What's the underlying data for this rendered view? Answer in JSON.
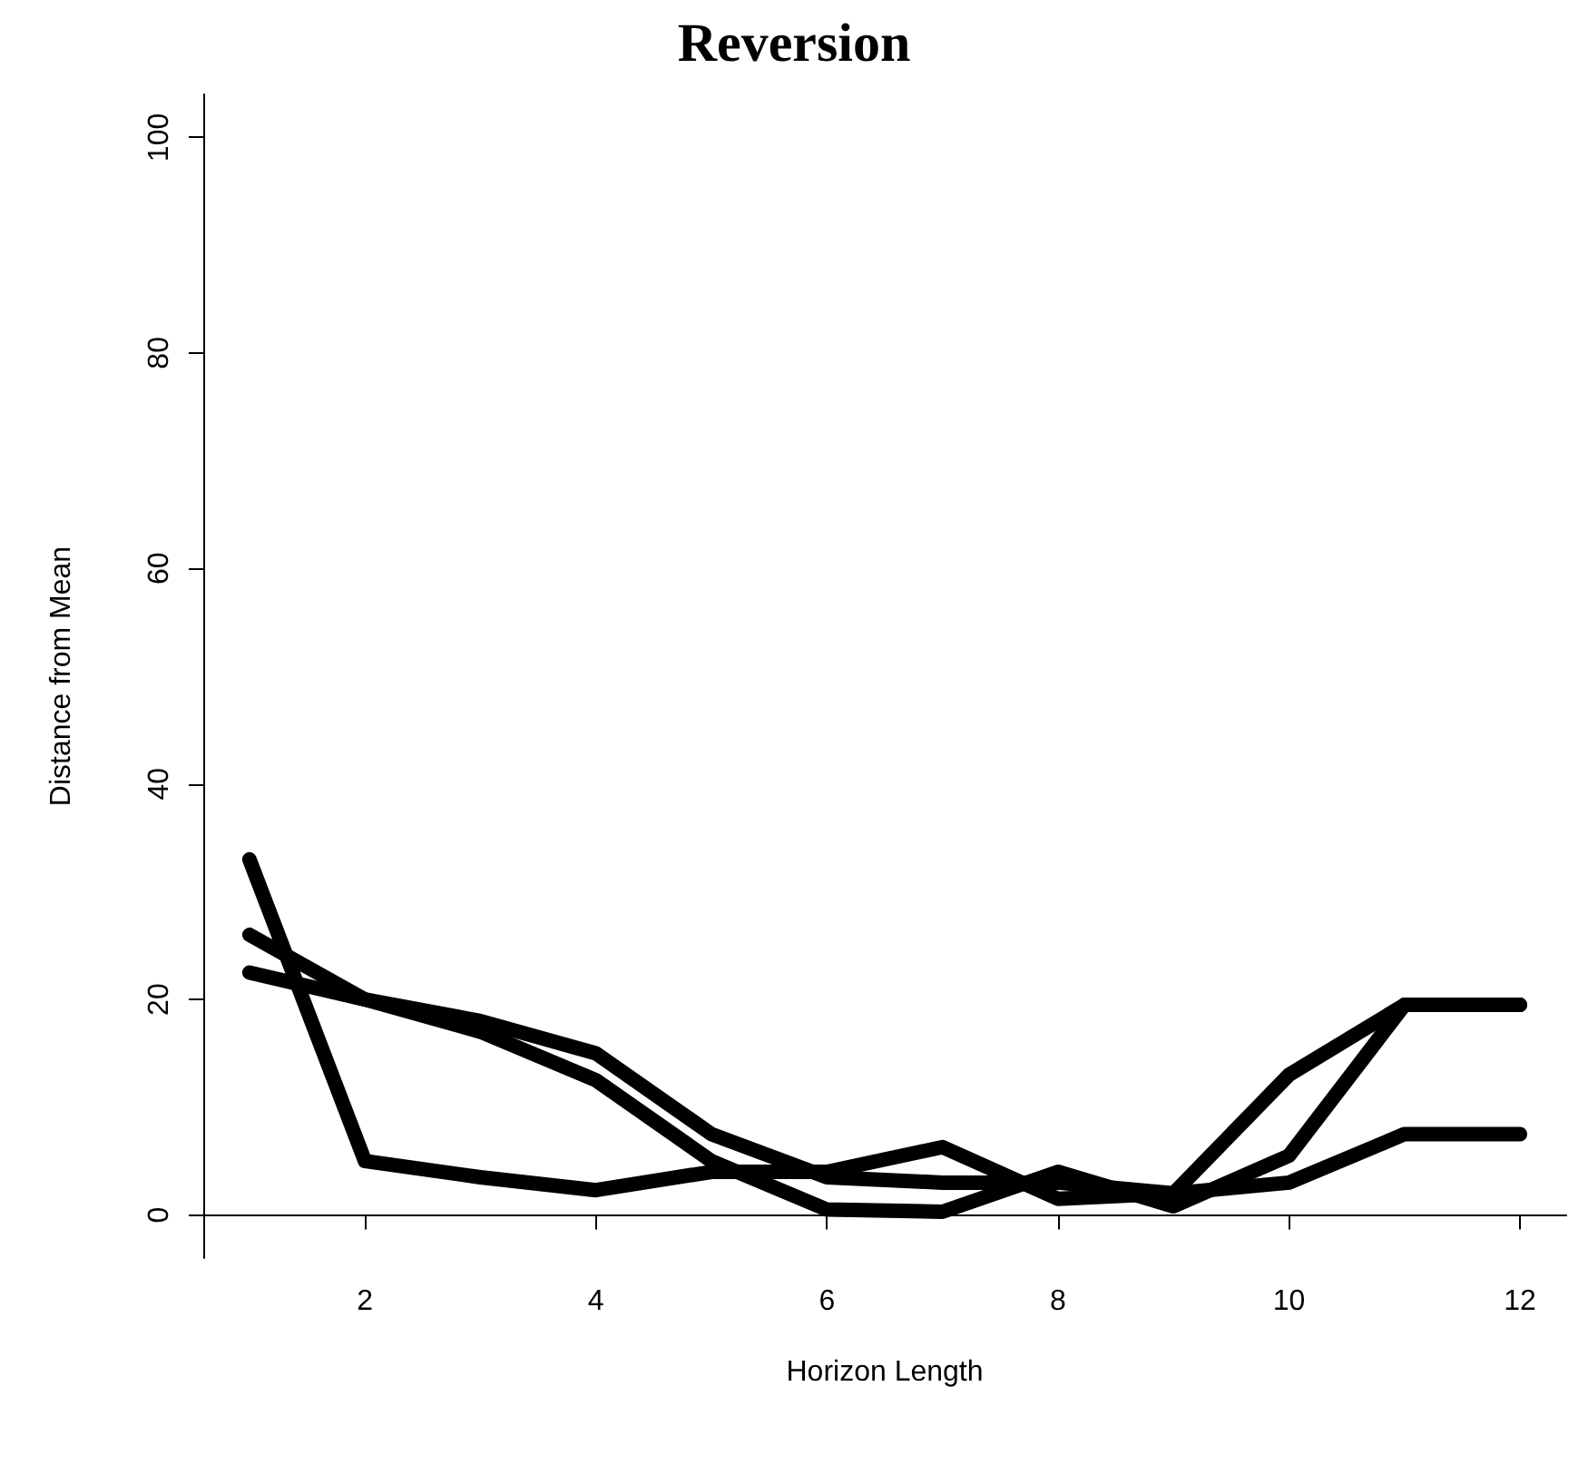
{
  "chart_data": {
    "type": "line",
    "title": "Reversion",
    "xlabel": "Horizon Length",
    "ylabel": "Distance from Mean",
    "x": [
      1,
      2,
      3,
      4,
      5,
      6,
      7,
      8,
      9,
      10,
      11,
      12
    ],
    "series": [
      {
        "color": "#000000",
        "values": [
          33,
          5,
          3.5,
          2.3,
          4,
          4,
          6.3,
          1.5,
          2,
          3,
          7.5,
          7.5
        ]
      },
      {
        "color": "#000000",
        "values": [
          26,
          20,
          18,
          15,
          7.5,
          3.5,
          3,
          3,
          2,
          13,
          19.5,
          19.5
        ]
      },
      {
        "color": "#000000",
        "values": [
          22.5,
          20,
          17,
          12.5,
          5,
          0.5,
          0.3,
          4,
          0.8,
          5.5,
          19.5,
          19.5
        ]
      }
    ],
    "xlim": [
      0.6,
      12.4
    ],
    "xticks": [
      2,
      4,
      6,
      8,
      10,
      12
    ],
    "ylim": [
      -4,
      104
    ],
    "yticks": [
      0,
      20,
      40,
      60,
      80,
      100
    ],
    "grid": false,
    "line_style": "solid"
  }
}
